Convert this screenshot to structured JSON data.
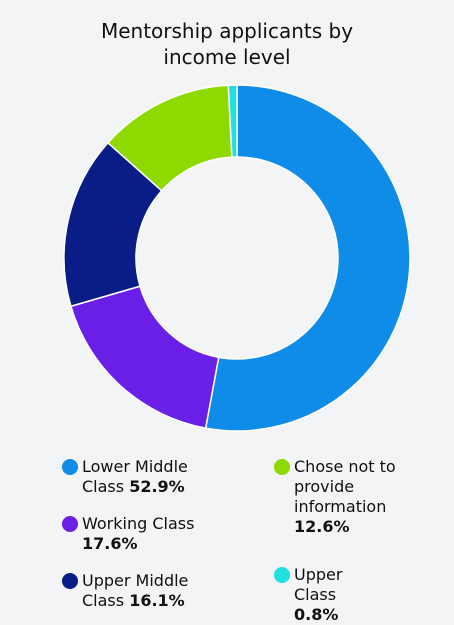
{
  "chart_data": {
    "type": "donut",
    "title": "Mentorship applicants by income level",
    "categories": [
      "Lower Middle Class",
      "Working Class",
      "Upper Middle Class",
      "Chose not to provide information",
      "Upper Class"
    ],
    "values": [
      52.9,
      17.6,
      16.1,
      12.6,
      0.8
    ],
    "value_labels": [
      "52.9%",
      "17.6%",
      "16.1%",
      "12.6%",
      "0.8%"
    ],
    "colors": [
      "#0f8be8",
      "#6a1fe6",
      "#0a1d86",
      "#8ed900",
      "#1fe0df"
    ]
  }
}
